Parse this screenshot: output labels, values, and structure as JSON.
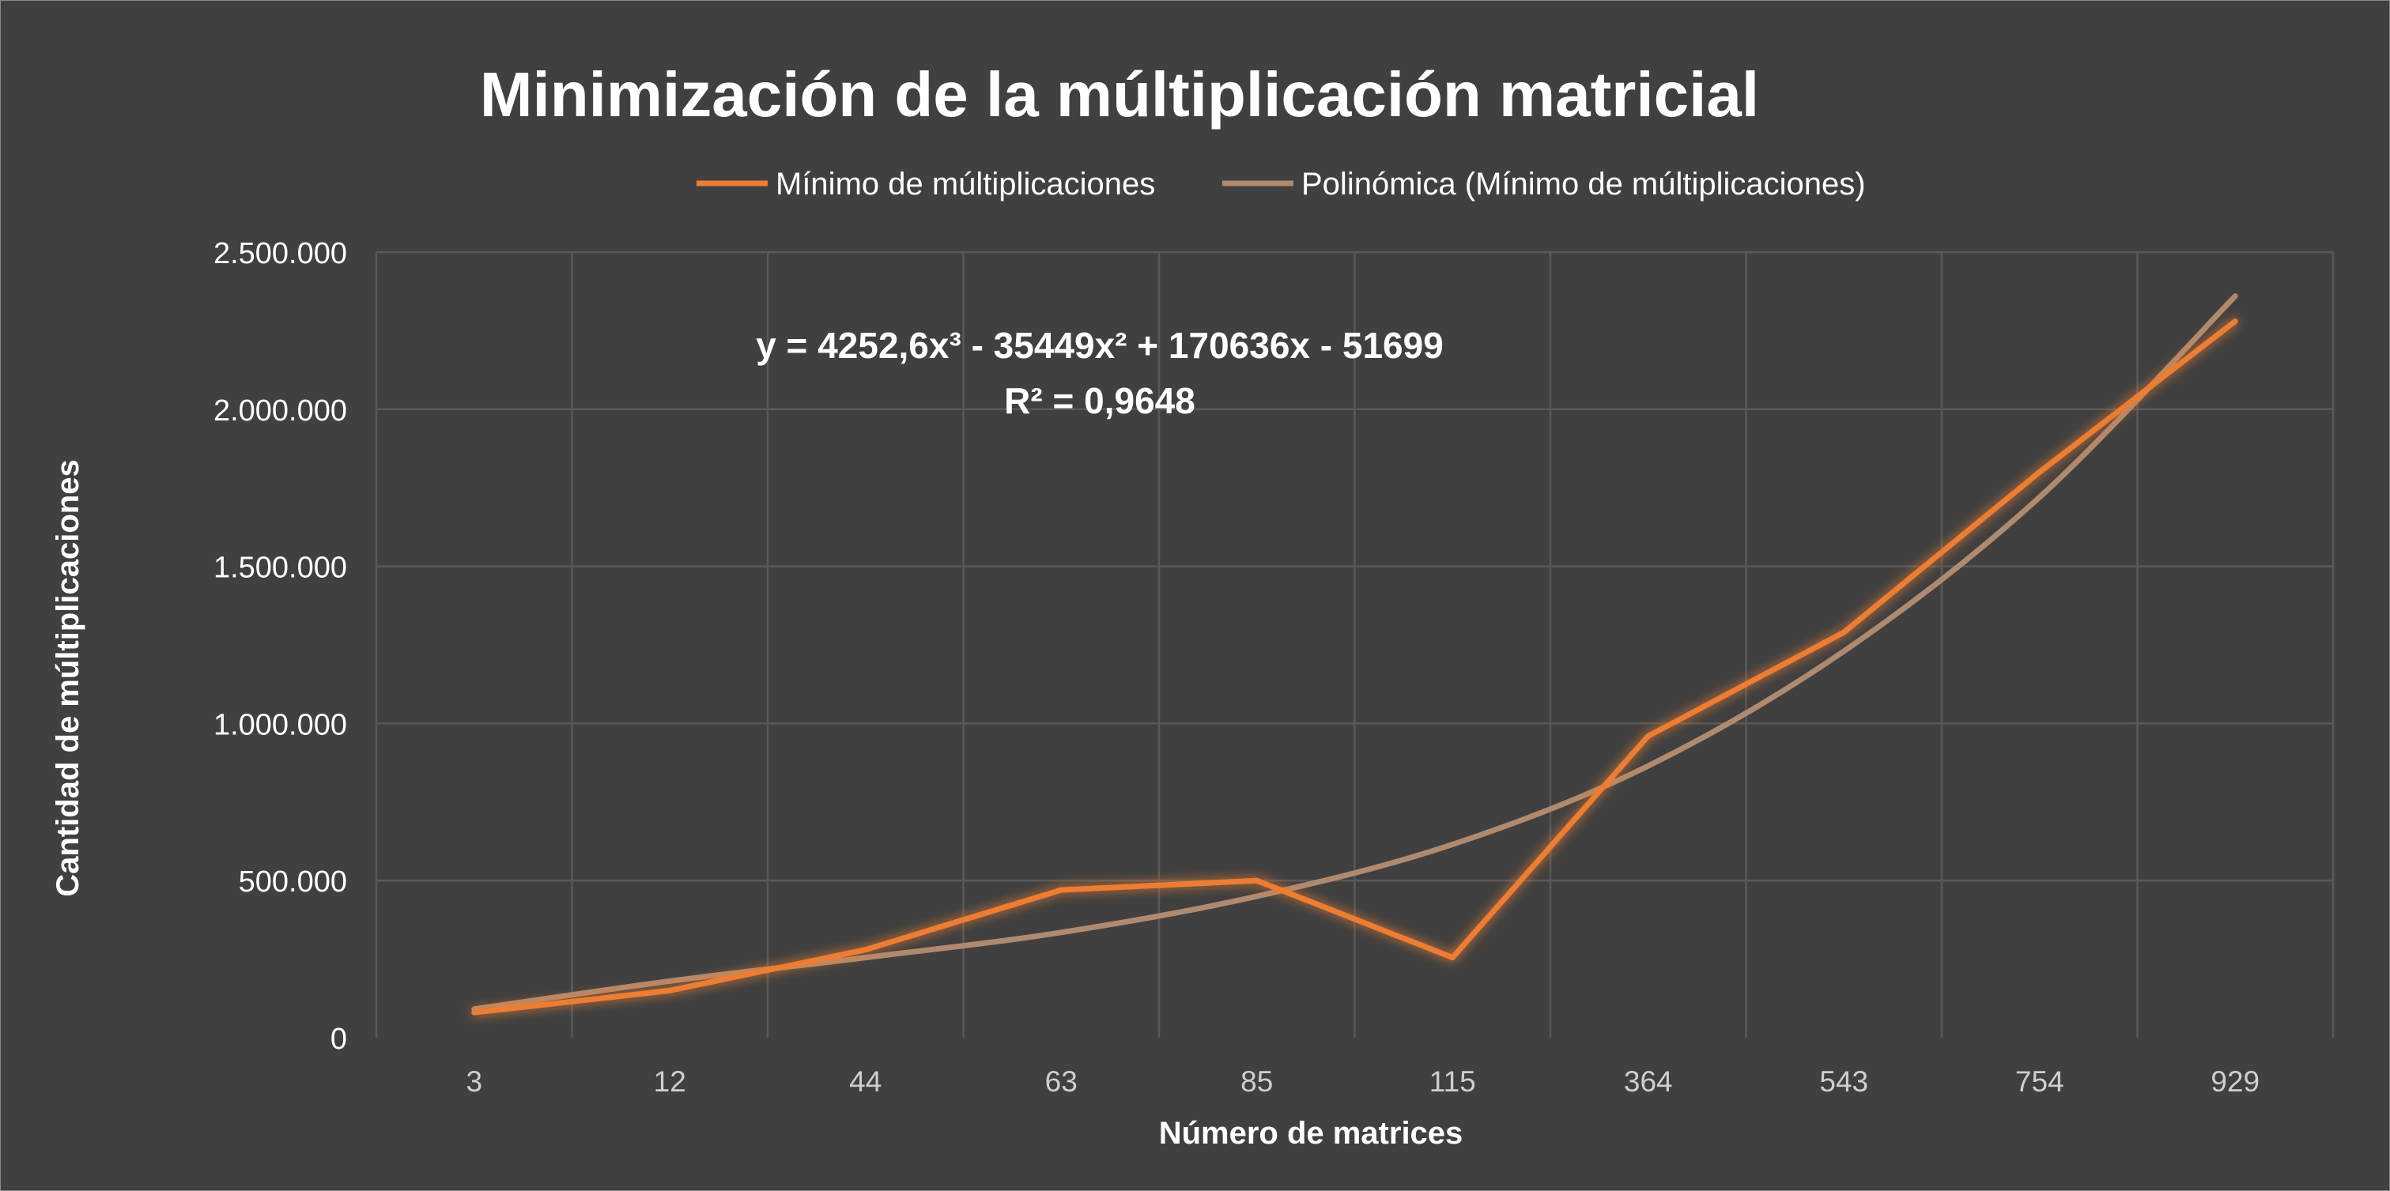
{
  "chart_data": {
    "type": "line",
    "title": "Minimización de la múltiplicación matricial",
    "xlabel": "Número de matrices",
    "ylabel": "Cantidad de múltiplicaciones",
    "categories": [
      "3",
      "12",
      "44",
      "63",
      "85",
      "115",
      "364",
      "543",
      "754",
      "929"
    ],
    "y_ticks": [
      "0",
      "500.000",
      "1.000.000",
      "1.500.000",
      "2.000.000",
      "2.500.000"
    ],
    "ylim": [
      0,
      2500000
    ],
    "grid": true,
    "legend_position": "top",
    "series": [
      {
        "name": "Mínimo de múltiplicaciones",
        "color": "#ed7d31",
        "values": [
          80000,
          150000,
          280000,
          470000,
          500000,
          255000,
          960000,
          1290000,
          1800000,
          2280000
        ]
      },
      {
        "name": "Polinómica (Mínimo de múltiplicaciones)",
        "color": "#b08a6e",
        "trendline": "polynomial",
        "values": [
          91000,
          180000,
          255000,
          335000,
          450000,
          615000,
          865000,
          1230000,
          1720000,
          2360000
        ]
      }
    ],
    "annotation": {
      "equation": "y = 4252,6x³ - 35449x² + 170636x - 51699",
      "r_squared": "R² = 0,9648"
    }
  }
}
